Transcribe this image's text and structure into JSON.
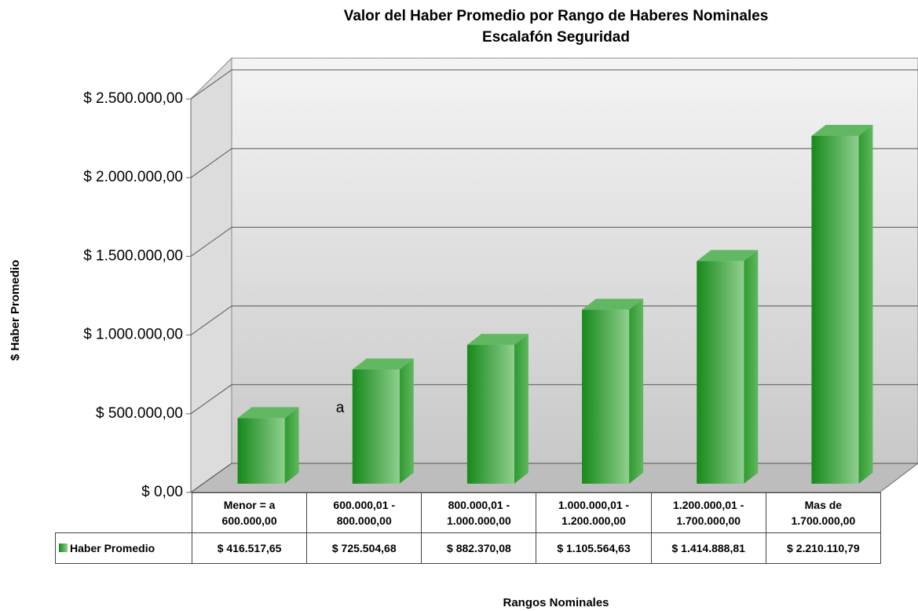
{
  "chart_data": {
    "type": "bar3d",
    "title": "Valor del Haber Promedio por Rango de Haberes Nominales",
    "subtitle": "Escalafón Seguridad",
    "y_label": "$ Haber Promedio",
    "x_label": "Rangos Nominales",
    "annotation": "a",
    "categories": [
      "Menor = a\n600.000,00",
      "600.000,01 -\n800.000,00",
      "800.000,01 -\n1.000.000,00",
      "1.000.000,01 -\n1.200.000,00",
      "1.200.000,01 -\n1.700.000,00",
      "Mas de\n1.700.000,00"
    ],
    "series": [
      {
        "name": "Haber Promedio",
        "color": "#3a9a3a",
        "values": [
          416517.65,
          725504.68,
          882370.08,
          1105564.63,
          1414888.81,
          2210110.79
        ],
        "value_labels": [
          "$ 416.517,65",
          "$ 725.504,68",
          "$ 882.370,08",
          "$ 1.105.564,63",
          "$ 1.414.888,81",
          "$ 2.210.110,79"
        ]
      }
    ],
    "ylim": [
      0,
      2500000
    ],
    "yticks": [
      {
        "value": 0,
        "label": "$ 0,00"
      },
      {
        "value": 500000,
        "label": "$ 500.000,00"
      },
      {
        "value": 1000000,
        "label": "$ 1.000.000,00"
      },
      {
        "value": 1500000,
        "label": "$ 1.500.000,00"
      },
      {
        "value": 2000000,
        "label": "$ 2.000.000,00"
      },
      {
        "value": 2500000,
        "label": "$ 2.500.000,00"
      }
    ],
    "grid": true
  }
}
